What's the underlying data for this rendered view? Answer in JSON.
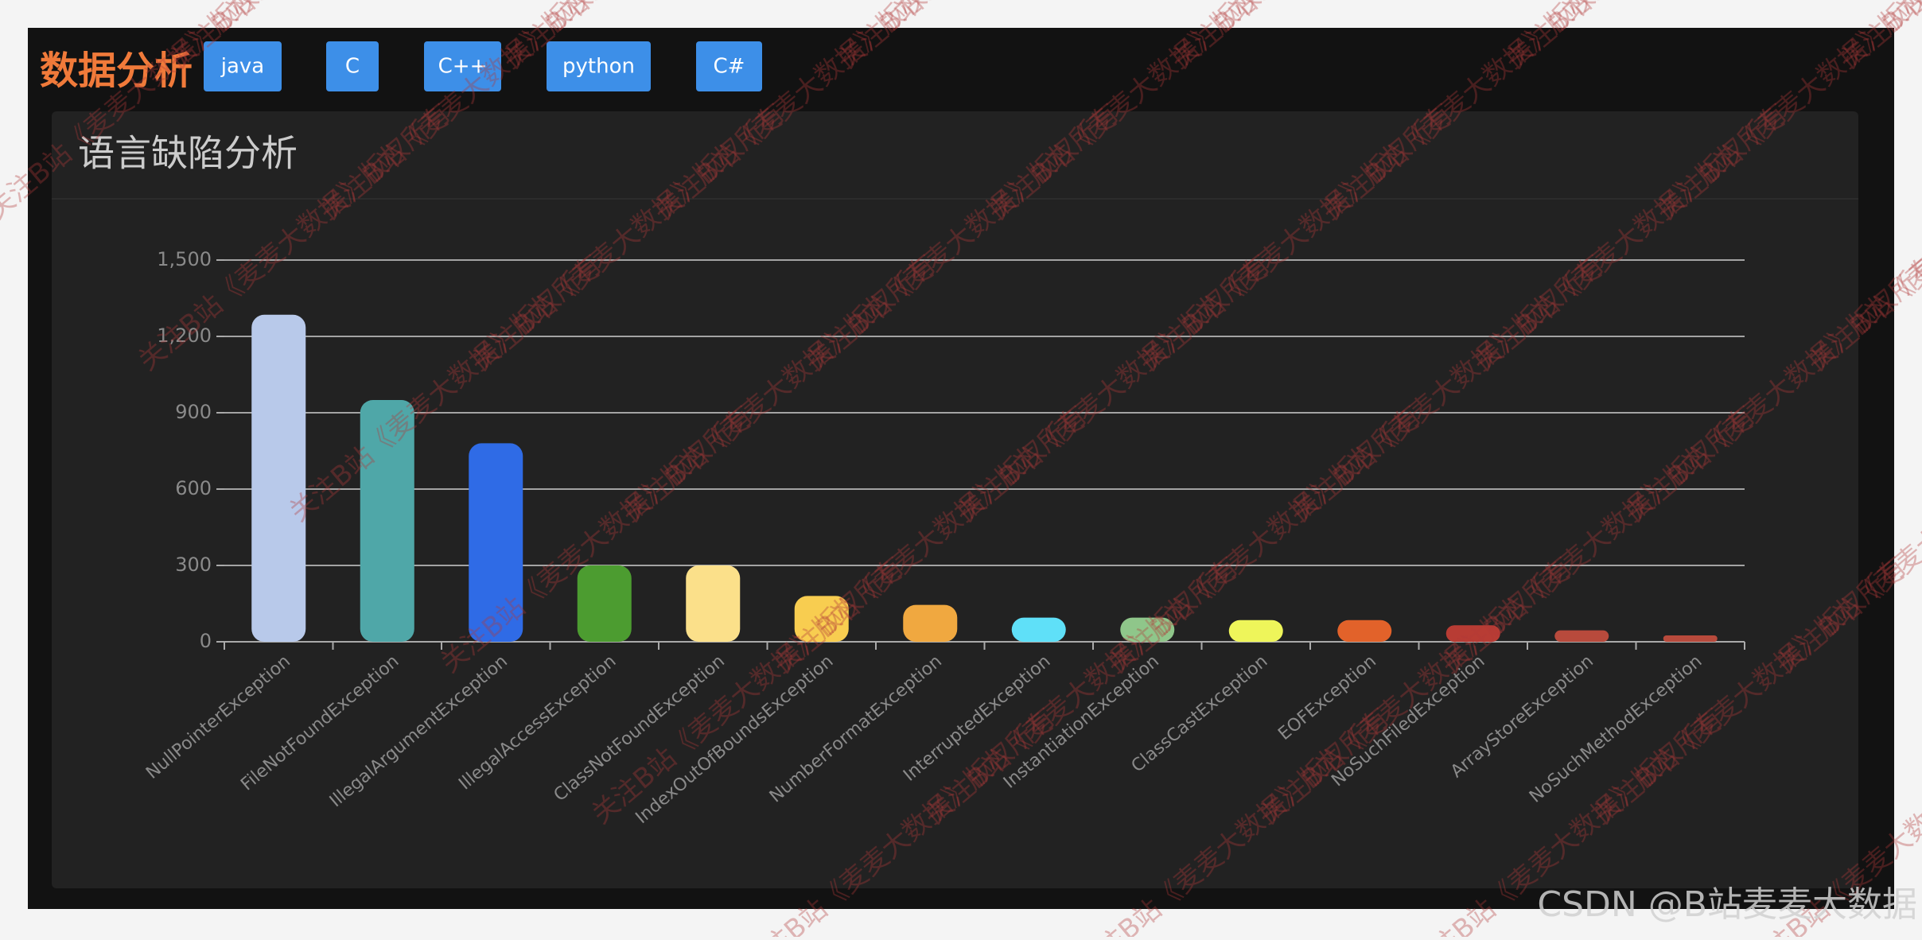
{
  "header": {
    "title": "数据分析",
    "buttons": [
      "java",
      "C",
      "C++",
      "python",
      "C#"
    ]
  },
  "chart_data": {
    "type": "bar",
    "title": "语言缺陷分析",
    "categories": [
      "NullPointerException",
      "FileNotFoundException",
      "IllegalArgumentException",
      "IllegalAccessException",
      "ClassNotFoundException",
      "IndexOutOfBoundsException",
      "NumberFormatException",
      "InterruptedException",
      "InstantiationException",
      "ClassCastException",
      "EOFException",
      "NoSuchFiledException",
      "ArrayStoreException",
      "NoSuchMethodException"
    ],
    "values": [
      1285,
      950,
      780,
      300,
      300,
      180,
      145,
      95,
      95,
      85,
      85,
      65,
      45,
      25
    ],
    "colors": [
      "#b8c9ea",
      "#4fa7a8",
      "#2f6be6",
      "#4c9c30",
      "#fbe08a",
      "#f8cd50",
      "#f0a840",
      "#5fe0f8",
      "#8fc68a",
      "#eef55a",
      "#e2622a",
      "#b83c34",
      "#b84a3c",
      "#b84a3c"
    ],
    "ylim": [
      0,
      1500
    ],
    "yticks": [
      0,
      300,
      600,
      900,
      {
        "value": 1200,
        "label": "1,200"
      },
      {
        "value": 1500,
        "label": "1,500"
      }
    ],
    "grid": true
  },
  "watermark": "关注B站《麦麦大数据》版权所有",
  "footer": "CSDN @B站麦麦大数据"
}
